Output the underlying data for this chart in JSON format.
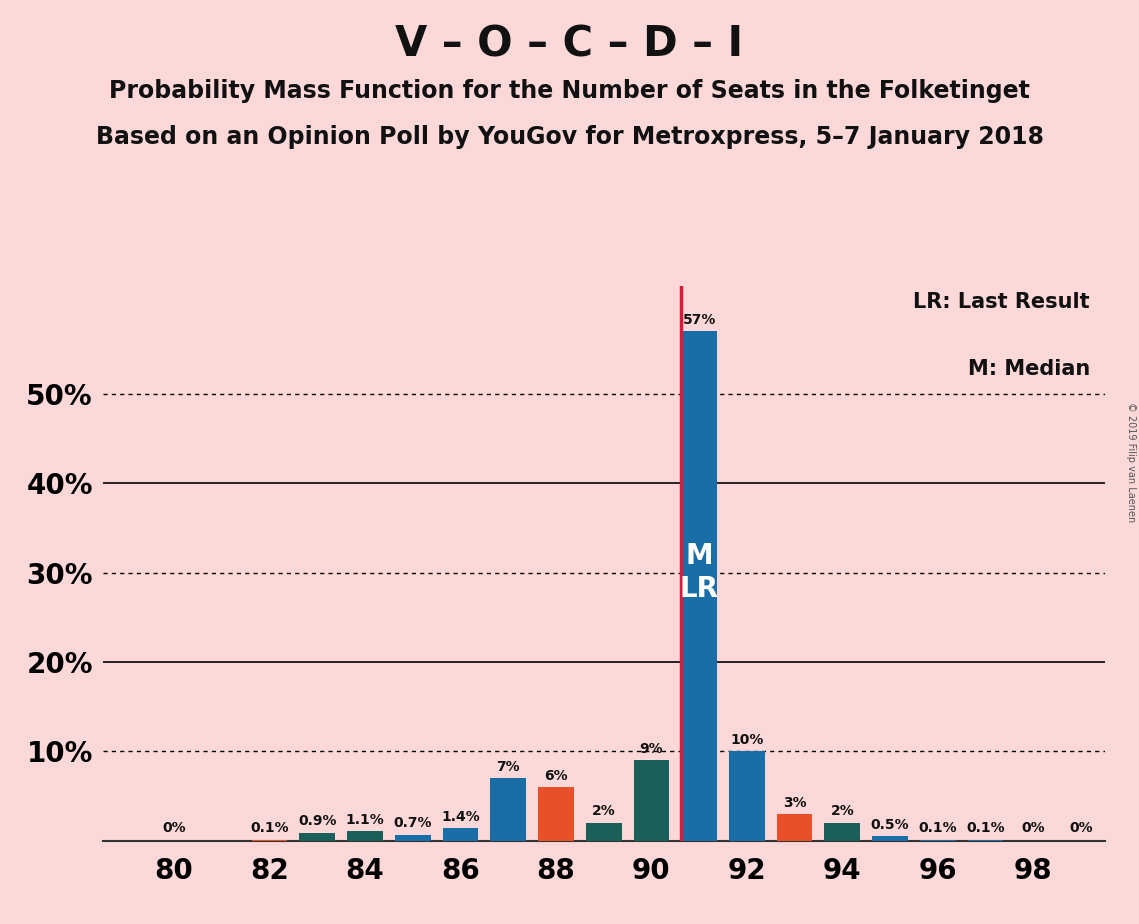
{
  "title": "V – O – C – D – I",
  "subtitle1": "Probability Mass Function for the Number of Seats in the Folketinget",
  "subtitle2": "Based on an Opinion Poll by YouGov for Metroxpress, 5–7 January 2018",
  "copyright": "© 2019 Filip van Laenen",
  "legend_lr": "LR: Last Result",
  "legend_m": "M: Median",
  "background_color": "#fcd8d8",
  "bar_colors": {
    "blue": "#1a6ea8",
    "orange": "#e8502a",
    "teal": "#1a5f5a"
  },
  "lr_line_color": "#d81b3a",
  "seats_data": [
    [
      80,
      0.0,
      "blue"
    ],
    [
      81,
      0.0,
      "blue"
    ],
    [
      82,
      0.1,
      "orange"
    ],
    [
      83,
      0.9,
      "teal"
    ],
    [
      84,
      1.1,
      "teal"
    ],
    [
      85,
      0.7,
      "blue"
    ],
    [
      86,
      1.4,
      "blue"
    ],
    [
      87,
      7.0,
      "blue"
    ],
    [
      88,
      6.0,
      "orange"
    ],
    [
      89,
      2.0,
      "teal"
    ],
    [
      90,
      9.0,
      "teal"
    ],
    [
      91,
      57.0,
      "blue"
    ],
    [
      92,
      10.0,
      "blue"
    ],
    [
      93,
      3.0,
      "orange"
    ],
    [
      94,
      2.0,
      "teal"
    ],
    [
      95,
      0.5,
      "blue"
    ],
    [
      96,
      0.1,
      "blue"
    ],
    [
      97,
      0.1,
      "blue"
    ],
    [
      98,
      0.0,
      "blue"
    ],
    [
      99,
      0.0,
      "blue"
    ]
  ],
  "bar_labels": {
    "80": "0%",
    "82": "0.1%",
    "83": "0.9%",
    "84": "1.1%",
    "85": "0.7%",
    "86": "1.4%",
    "87": "7%",
    "88": "6%",
    "89": "2%",
    "90": "9%",
    "91": "57%",
    "92": "10%",
    "93": "3%",
    "94": "2%",
    "95": "0.5%",
    "96": "0.1%",
    "97": "0.1%",
    "98": "0%",
    "99": "0%"
  },
  "lr_seat": 91,
  "median_seat": 91,
  "ylim": [
    0,
    62
  ],
  "yticks_dotted": [
    10,
    30,
    50
  ],
  "yticks_solid": [
    20,
    40
  ],
  "ytick_labels": [
    "",
    "10%",
    "20%",
    "30%",
    "40%",
    "50%"
  ],
  "ytick_positions": [
    0,
    10,
    20,
    30,
    40,
    50
  ],
  "xlim": [
    78.5,
    99.5
  ],
  "xticks": [
    80,
    82,
    84,
    86,
    88,
    90,
    92,
    94,
    96,
    98
  ],
  "bar_width": 0.75,
  "title_fontsize": 30,
  "subtitle_fontsize": 17,
  "tick_fontsize": 20,
  "label_fontsize": 10,
  "legend_fontsize": 15,
  "ml_fontsize": 20
}
